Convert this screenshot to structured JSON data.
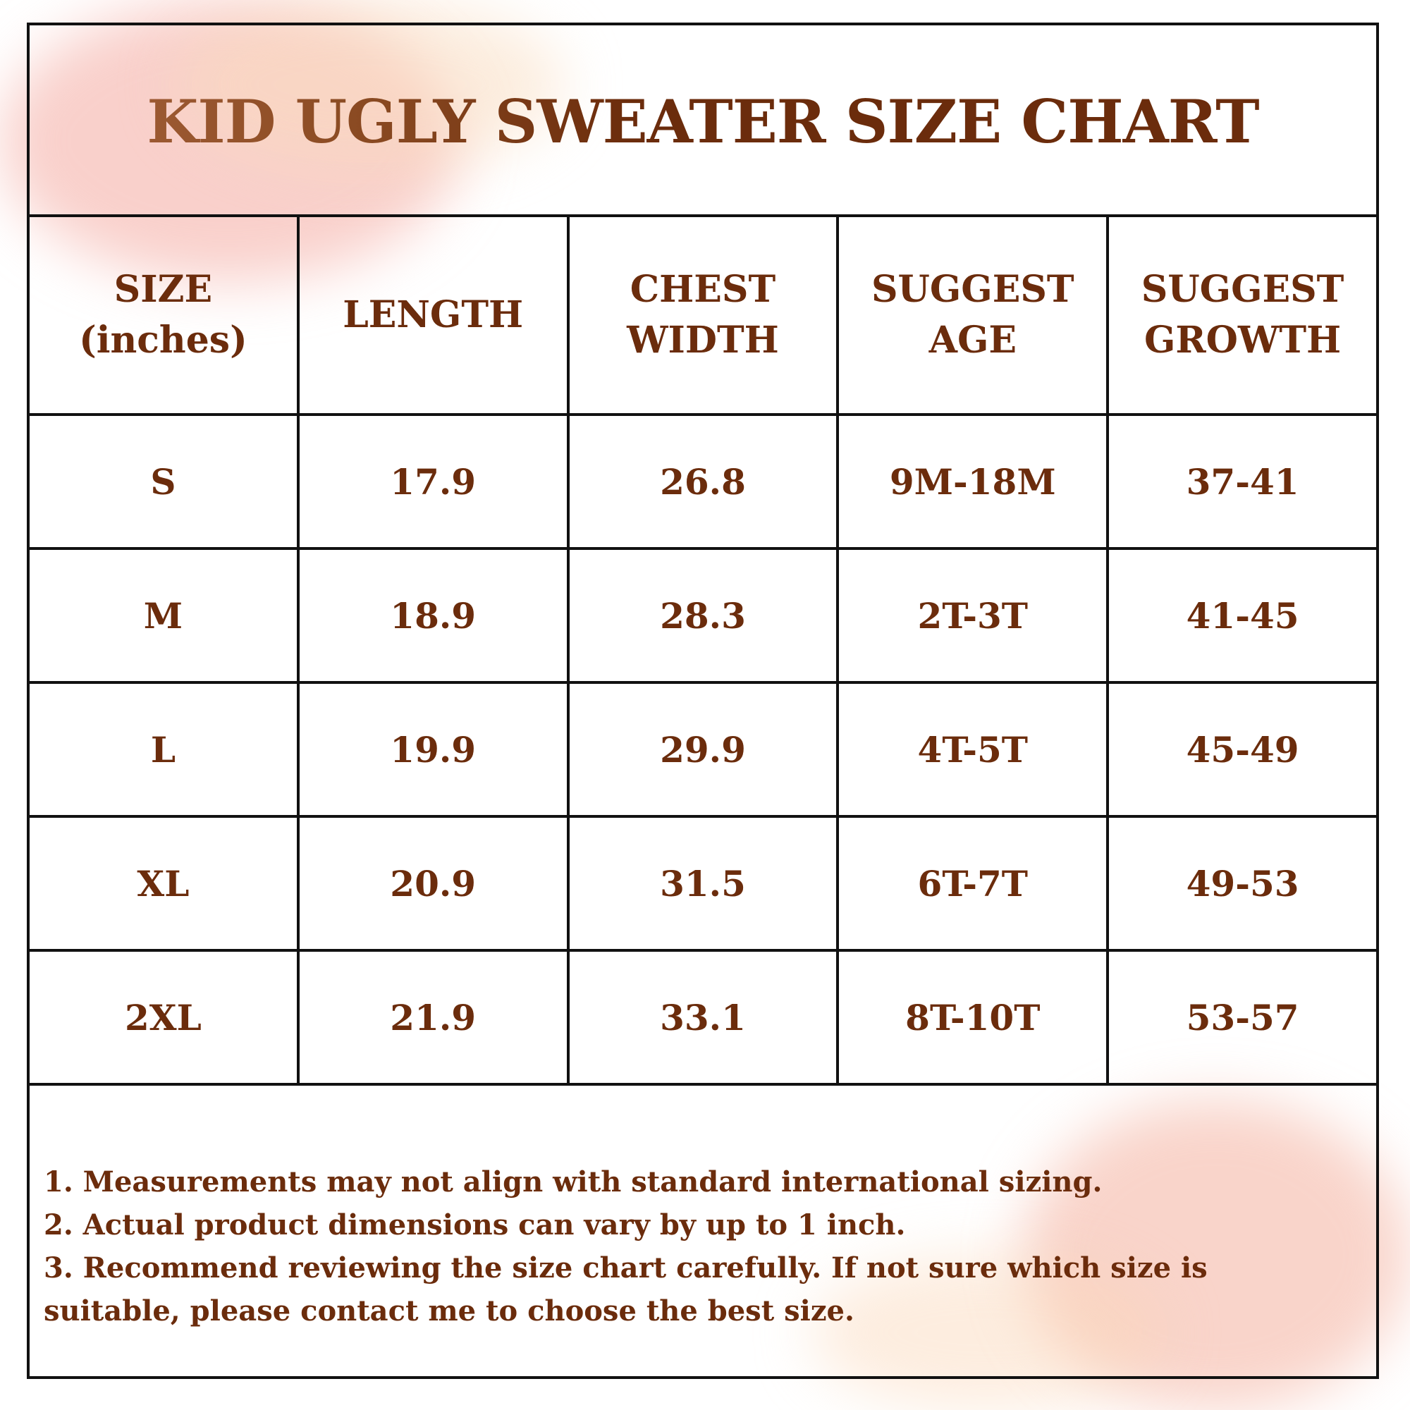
{
  "title": "KID UGLY SWEATER SIZE CHART",
  "table": {
    "headers": [
      [
        "SIZE",
        "(inches)"
      ],
      [
        "LENGTH"
      ],
      [
        "CHEST",
        "WIDTH"
      ],
      [
        "SUGGEST",
        "AGE"
      ],
      [
        "SUGGEST",
        "GROWTH"
      ]
    ],
    "rows": [
      [
        "S",
        "17.9",
        "26.8",
        "9M-18M",
        "37-41"
      ],
      [
        "M",
        "18.9",
        "28.3",
        "2T-3T",
        "41-45"
      ],
      [
        "L",
        "19.9",
        "29.9",
        "4T-5T",
        "45-49"
      ],
      [
        "XL",
        "20.9",
        "31.5",
        "6T-7T",
        "49-53"
      ],
      [
        "2XL",
        "21.9",
        "33.1",
        "8T-10T",
        "53-57"
      ]
    ]
  },
  "notes": [
    "1. Measurements may not align with standard international sizing.",
    "2. Actual product dimensions can vary by up to 1 inch.",
    "3. Recommend reviewing the size chart carefully. If not sure which size is suitable, please contact me to choose the best size."
  ],
  "colors": {
    "text": "#6b2c0c",
    "border": "#111111",
    "accent_wash": "#f4b3a6"
  }
}
